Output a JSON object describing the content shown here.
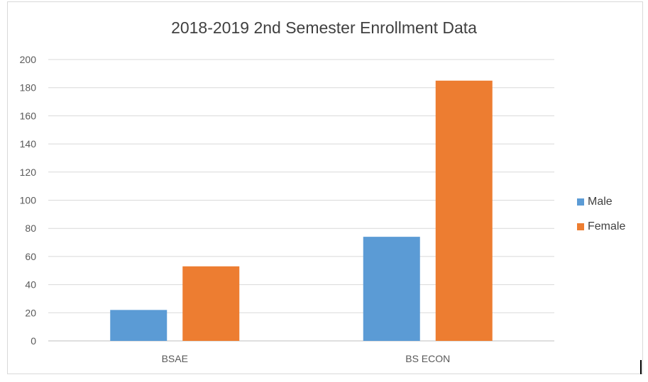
{
  "chart_data": {
    "type": "bar",
    "title": "2018-2019 2nd Semester Enrollment Data",
    "categories": [
      "BSAE",
      "BS ECON"
    ],
    "series": [
      {
        "name": "Male",
        "values": [
          22,
          74
        ],
        "color": "#5b9bd5"
      },
      {
        "name": "Female",
        "values": [
          53,
          185
        ],
        "color": "#ed7d31"
      }
    ],
    "ylim": [
      0,
      200
    ],
    "yticks": [
      0,
      20,
      40,
      60,
      80,
      100,
      120,
      140,
      160,
      180,
      200
    ],
    "grid": true,
    "legend": "right"
  }
}
